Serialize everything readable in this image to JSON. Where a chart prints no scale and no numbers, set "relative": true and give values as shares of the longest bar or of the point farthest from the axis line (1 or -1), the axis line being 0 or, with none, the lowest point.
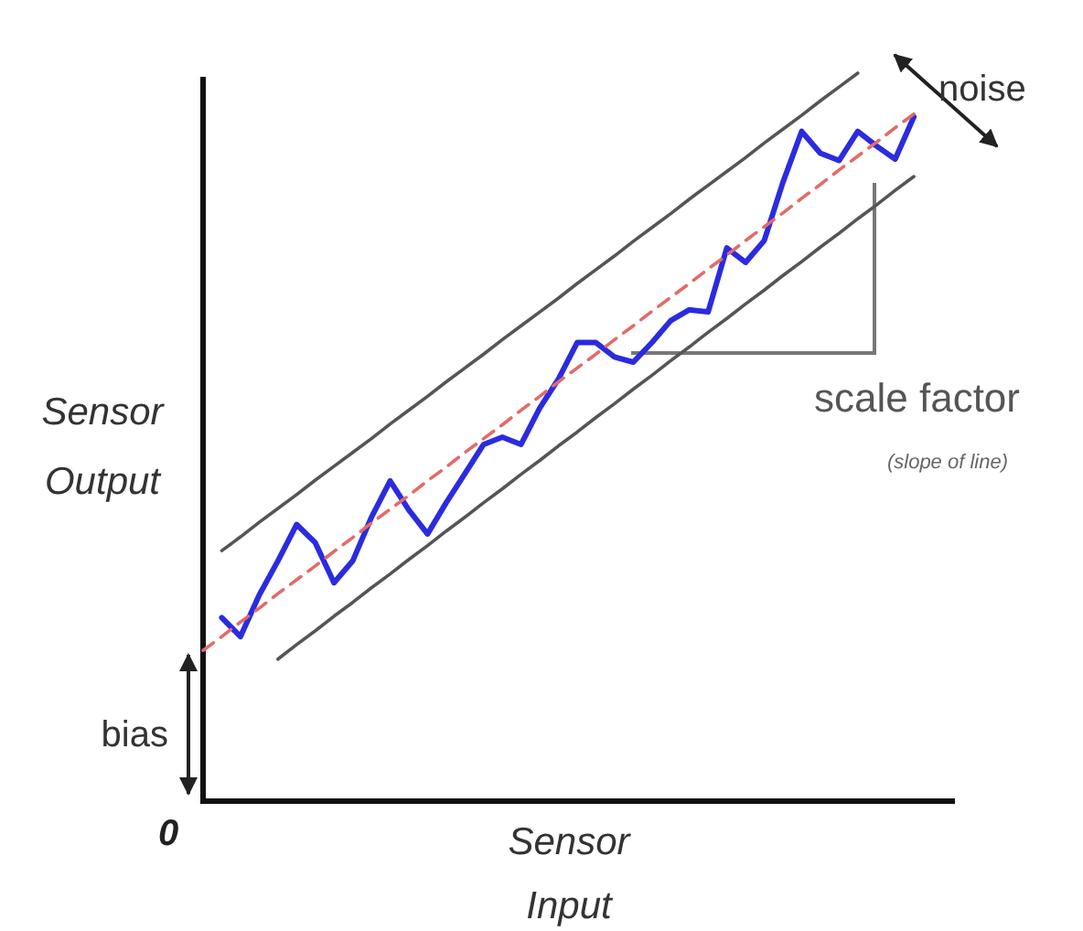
{
  "chart_data": {
    "type": "line",
    "relative": true,
    "xlabel": "Sensor Input",
    "ylabel": "Sensor Output",
    "legend": false,
    "annotations": [
      "noise",
      "scale factor",
      "(slope of line)",
      "bias",
      "0"
    ],
    "categories": [
      null,
      null,
      null,
      null,
      null,
      null,
      null,
      null,
      null,
      null,
      null,
      null,
      null,
      null,
      null,
      null,
      null,
      null,
      null,
      null,
      null,
      null,
      null,
      null,
      null,
      null,
      null,
      null,
      null,
      null,
      null,
      null,
      null,
      null,
      null,
      null,
      null,
      null,
      null,
      null,
      null
    ],
    "series": [
      {
        "color": "#2b2be0",
        "line_style": "solid",
        "values": [
          null,
          0.252,
          0.226,
          0.283,
          0.33,
          0.38,
          0.355,
          0.3,
          0.33,
          0.39,
          0.44,
          0.4,
          0.367,
          0.41,
          0.45,
          0.49,
          0.5,
          0.49,
          0.54,
          0.58,
          0.63,
          0.63,
          0.61,
          0.603,
          0.63,
          0.66,
          0.675,
          0.672,
          0.76,
          0.74,
          0.77,
          0.85,
          0.92,
          0.89,
          0.88,
          0.92,
          0.9,
          0.882,
          0.94,
          null,
          null
        ]
      },
      {
        "color": "#e46a6a",
        "line_style": "dashed",
        "values": [
          0.207,
          0.226,
          0.246,
          0.265,
          0.285,
          0.304,
          0.323,
          0.343,
          0.362,
          0.382,
          0.401,
          0.42,
          0.44,
          0.459,
          0.479,
          0.498,
          0.517,
          0.537,
          0.556,
          0.576,
          0.595,
          0.614,
          0.634,
          0.653,
          0.673,
          0.692,
          0.711,
          0.731,
          0.75,
          0.77,
          0.789,
          0.808,
          0.828,
          0.847,
          0.867,
          0.886,
          0.905,
          0.925,
          0.944,
          null,
          null
        ]
      },
      {
        "color": "#555555",
        "line_style": "solid",
        "values": [
          null,
          0.344,
          0.363,
          0.383,
          0.402,
          0.421,
          0.441,
          0.46,
          0.479,
          0.498,
          0.518,
          0.537,
          0.556,
          0.576,
          0.595,
          0.614,
          0.634,
          0.653,
          0.672,
          0.691,
          0.711,
          0.73,
          0.749,
          0.769,
          0.788,
          0.807,
          0.827,
          0.846,
          0.865,
          0.884,
          0.904,
          0.923,
          0.942,
          0.962,
          0.981,
          1.0,
          null,
          null,
          null,
          null,
          null
        ]
      },
      {
        "color": "#555555",
        "line_style": "solid",
        "values": [
          null,
          null,
          null,
          null,
          0.195,
          0.215,
          0.234,
          0.254,
          0.273,
          0.293,
          0.312,
          0.332,
          0.351,
          0.371,
          0.39,
          0.41,
          0.429,
          0.449,
          0.468,
          0.488,
          0.507,
          0.527,
          0.546,
          0.566,
          0.585,
          0.605,
          0.624,
          0.644,
          0.663,
          0.683,
          0.702,
          0.722,
          0.741,
          0.761,
          0.78,
          0.8,
          0.819,
          0.839,
          0.858,
          null,
          null
        ]
      }
    ]
  }
}
